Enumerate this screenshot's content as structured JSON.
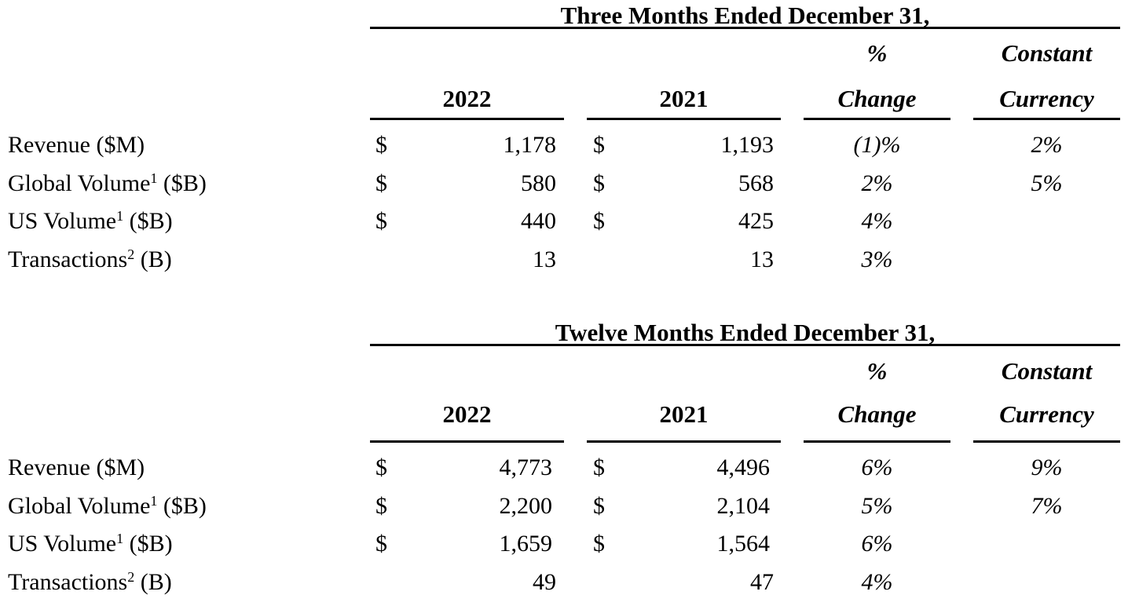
{
  "sections": [
    {
      "title": "Three Months Ended December 31,",
      "columns": {
        "y1": "2022",
        "y2": "2021",
        "pct_line1": "%",
        "pct_line2": "Change",
        "cc_line1": "Constant",
        "cc_line2": "Currency"
      },
      "rows": [
        {
          "label": "Revenue ($M)",
          "sup": "",
          "label_suffix": "",
          "dollar1": "$",
          "v1": "1,178",
          "dollar2": "$",
          "v2": "1,193",
          "change": "(1)%",
          "cc": "2%"
        },
        {
          "label": "Global Volume",
          "sup": "1",
          "label_suffix": " ($B)",
          "dollar1": "$",
          "v1": "580",
          "dollar2": "$",
          "v2": "568",
          "change": "2%",
          "cc": "5%"
        },
        {
          "label": "US Volume",
          "sup": "1",
          "label_suffix": " ($B)",
          "dollar1": "$",
          "v1": "440",
          "dollar2": "$",
          "v2": "425",
          "change": "4%",
          "cc": ""
        },
        {
          "label": "Transactions",
          "sup": "2",
          "label_suffix": " (B)",
          "dollar1": "",
          "v1": "13",
          "dollar2": "",
          "v2": "13",
          "change": "3%",
          "cc": ""
        }
      ]
    },
    {
      "title": "Twelve Months Ended December 31,",
      "columns": {
        "y1": "2022",
        "y2": "2021",
        "pct_line1": "%",
        "pct_line2": "Change",
        "cc_line1": "Constant",
        "cc_line2": "Currency"
      },
      "rows": [
        {
          "label": "Revenue ($M)",
          "sup": "",
          "label_suffix": "",
          "dollar1": "$",
          "v1": "4,773",
          "dollar2": "$",
          "v2": "4,496",
          "change": "6%",
          "cc": "9%"
        },
        {
          "label": "Global Volume",
          "sup": "1",
          "label_suffix": " ($B)",
          "dollar1": "$",
          "v1": "2,200",
          "dollar2": "$",
          "v2": "2,104",
          "change": "5%",
          "cc": "7%"
        },
        {
          "label": "US Volume",
          "sup": "1",
          "label_suffix": " ($B)",
          "dollar1": "$",
          "v1": "1,659",
          "dollar2": "$",
          "v2": "1,564",
          "change": "6%",
          "cc": ""
        },
        {
          "label": "Transactions",
          "sup": "2",
          "label_suffix": " (B)",
          "dollar1": "",
          "v1": "49",
          "dollar2": "",
          "v2": "47",
          "change": "4%",
          "cc": ""
        }
      ]
    }
  ]
}
